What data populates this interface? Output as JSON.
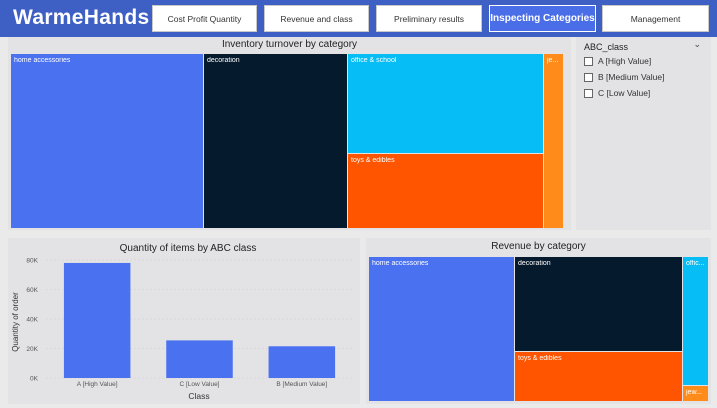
{
  "header": {
    "brand": "WarmeHands",
    "tabs": [
      {
        "label": "Cost Profit Quantity",
        "active": false
      },
      {
        "label": "Revenue and class",
        "active": false
      },
      {
        "label": "Preliminary results",
        "active": false
      },
      {
        "label": "Inspecting Categories",
        "active": true
      },
      {
        "label": "Management",
        "active": false
      }
    ]
  },
  "inventory_treemap": {
    "title": "Inventory turnover by category",
    "cells": [
      {
        "label": "home accessories",
        "color": "#4a72f0"
      },
      {
        "label": "decoration",
        "color": "#061a2e"
      },
      {
        "label": "office & school",
        "color": "#06bef5"
      },
      {
        "label": "toys & edibles",
        "color": "#ff5500"
      },
      {
        "label": "je...",
        "color": "#ff8c1a"
      }
    ]
  },
  "slicer": {
    "title": "ABC_class",
    "options": [
      "A [High Value]",
      "B [Medium Value]",
      "C [Low Value]"
    ]
  },
  "revenue_treemap": {
    "title": "Revenue by category",
    "cells": [
      {
        "label": "home accessories",
        "color": "#4a72f0"
      },
      {
        "label": "decoration",
        "color": "#061a2e"
      },
      {
        "label": "toys & edibles",
        "color": "#ff5500"
      },
      {
        "label": "offic...",
        "color": "#06bef5"
      },
      {
        "label": "jew...",
        "color": "#ff8c1a"
      }
    ]
  },
  "chart_data": {
    "type": "bar",
    "title": "Quantity of items by ABC class",
    "xlabel": "Class",
    "ylabel": "Quantity of order",
    "categories": [
      "A [High Value]",
      "C [Low Value]",
      "B [Medium Value]"
    ],
    "values": [
      78000,
      25500,
      21500
    ],
    "ylim": [
      0,
      80000
    ],
    "yticks": [
      0,
      20000,
      40000,
      60000,
      80000
    ],
    "ytick_labels": [
      "0K",
      "20K",
      "40K",
      "60K",
      "80K"
    ],
    "bar_color": "#4a72f0"
  }
}
